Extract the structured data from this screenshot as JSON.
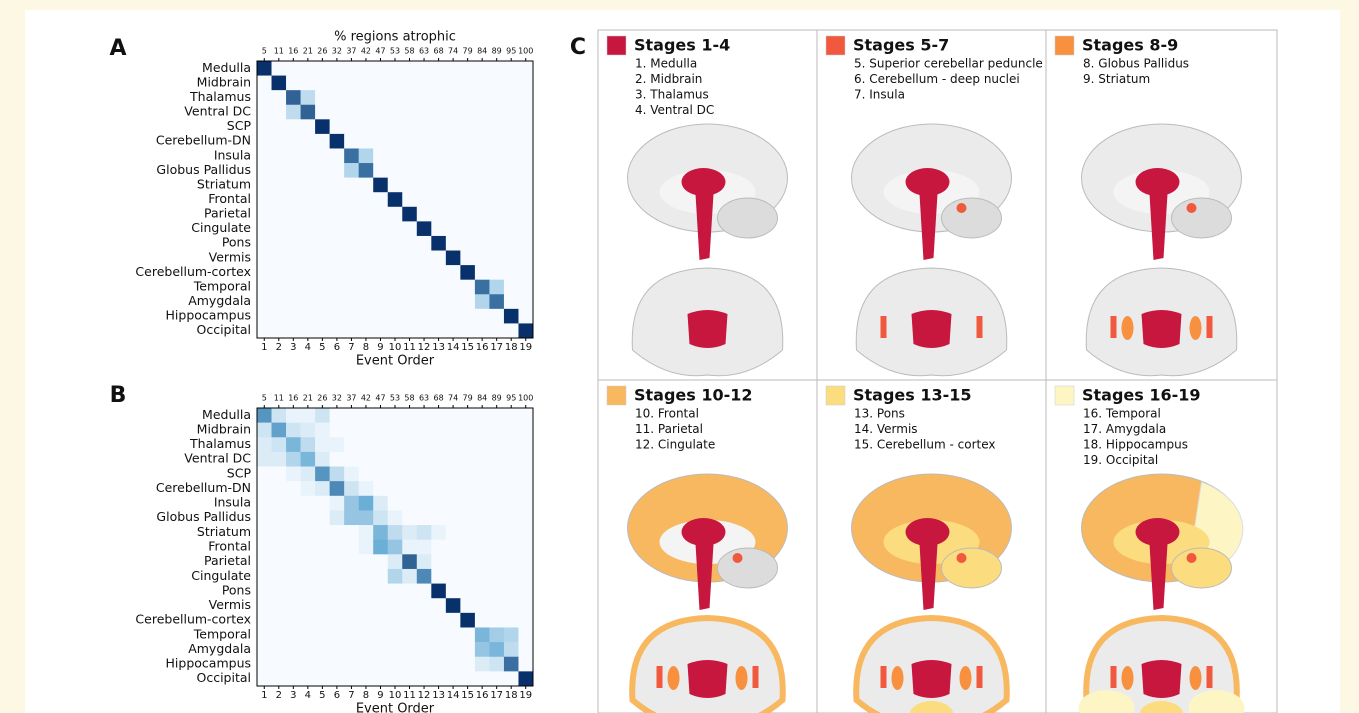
{
  "chart_data": [
    {
      "type": "heatmap",
      "label": "A",
      "x2label": "% regions atrophic",
      "xlabel": "Event Order",
      "rows": [
        "Medulla",
        "Midbrain",
        "Thalamus",
        "Ventral DC",
        "SCP",
        "Cerebellum-DN",
        "Insula",
        "Globus Pallidus",
        "Striatum",
        "Frontal",
        "Parietal",
        "Cingulate",
        "Pons",
        "Vermis",
        "Cerebellum-cortex",
        "Temporal",
        "Amygdala",
        "Hippocampus",
        "Occipital"
      ],
      "columns": [
        1,
        2,
        3,
        4,
        5,
        6,
        7,
        8,
        9,
        10,
        11,
        12,
        13,
        14,
        15,
        16,
        17,
        18,
        19
      ],
      "columns_top": [
        5,
        11,
        16,
        21,
        26,
        32,
        37,
        42,
        47,
        53,
        58,
        63,
        68,
        74,
        79,
        84,
        89,
        95,
        100
      ],
      "vlim": [
        0,
        1
      ],
      "colorscale": [
        "#f7fbff",
        "#6baed6",
        "#08306b"
      ],
      "values": [
        [
          1,
          0,
          0,
          0,
          0,
          0,
          0,
          0,
          0,
          0,
          0,
          0,
          0,
          0,
          0,
          0,
          0,
          0,
          0
        ],
        [
          0,
          1,
          0,
          0,
          0,
          0,
          0,
          0,
          0,
          0,
          0,
          0,
          0,
          0,
          0,
          0,
          0,
          0,
          0
        ],
        [
          0,
          0,
          0.8,
          0.2,
          0,
          0,
          0,
          0,
          0,
          0,
          0,
          0,
          0,
          0,
          0,
          0,
          0,
          0,
          0
        ],
        [
          0,
          0,
          0.2,
          0.8,
          0,
          0,
          0,
          0,
          0,
          0,
          0,
          0,
          0,
          0,
          0,
          0,
          0,
          0,
          0
        ],
        [
          0,
          0,
          0,
          0,
          1,
          0,
          0,
          0,
          0,
          0,
          0,
          0,
          0,
          0,
          0,
          0,
          0,
          0,
          0
        ],
        [
          0,
          0,
          0,
          0,
          0,
          1,
          0,
          0,
          0,
          0,
          0,
          0,
          0,
          0,
          0,
          0,
          0,
          0,
          0
        ],
        [
          0,
          0,
          0,
          0,
          0,
          0,
          0.75,
          0.25,
          0,
          0,
          0,
          0,
          0,
          0,
          0,
          0,
          0,
          0,
          0
        ],
        [
          0,
          0,
          0,
          0,
          0,
          0,
          0.25,
          0.75,
          0,
          0,
          0,
          0,
          0,
          0,
          0,
          0,
          0,
          0,
          0
        ],
        [
          0,
          0,
          0,
          0,
          0,
          0,
          0,
          0,
          1,
          0,
          0,
          0,
          0,
          0,
          0,
          0,
          0,
          0,
          0
        ],
        [
          0,
          0,
          0,
          0,
          0,
          0,
          0,
          0,
          0,
          1,
          0,
          0,
          0,
          0,
          0,
          0,
          0,
          0,
          0
        ],
        [
          0,
          0,
          0,
          0,
          0,
          0,
          0,
          0,
          0,
          0,
          1,
          0,
          0,
          0,
          0,
          0,
          0,
          0,
          0
        ],
        [
          0,
          0,
          0,
          0,
          0,
          0,
          0,
          0,
          0,
          0,
          0,
          1,
          0,
          0,
          0,
          0,
          0,
          0,
          0
        ],
        [
          0,
          0,
          0,
          0,
          0,
          0,
          0,
          0,
          0,
          0,
          0,
          0,
          1,
          0,
          0,
          0,
          0,
          0,
          0
        ],
        [
          0,
          0,
          0,
          0,
          0,
          0,
          0,
          0,
          0,
          0,
          0,
          0,
          0,
          1,
          0,
          0,
          0,
          0,
          0
        ],
        [
          0,
          0,
          0,
          0,
          0,
          0,
          0,
          0,
          0,
          0,
          0,
          0,
          0,
          0,
          1,
          0,
          0,
          0,
          0
        ],
        [
          0,
          0,
          0,
          0,
          0,
          0,
          0,
          0,
          0,
          0,
          0,
          0,
          0,
          0,
          0,
          0.75,
          0.25,
          0,
          0
        ],
        [
          0,
          0,
          0,
          0,
          0,
          0,
          0,
          0,
          0,
          0,
          0,
          0,
          0,
          0,
          0,
          0.25,
          0.75,
          0,
          0
        ],
        [
          0,
          0,
          0,
          0,
          0,
          0,
          0,
          0,
          0,
          0,
          0,
          0,
          0,
          0,
          0,
          0,
          0,
          1,
          0
        ],
        [
          0,
          0,
          0,
          0,
          0,
          0,
          0,
          0,
          0,
          0,
          0,
          0,
          0,
          0,
          0,
          0,
          0,
          0,
          1
        ]
      ]
    },
    {
      "type": "heatmap",
      "label": "B",
      "xlabel": "Event Order",
      "rows": [
        "Medulla",
        "Midbrain",
        "Thalamus",
        "Ventral DC",
        "SCP",
        "Cerebellum-DN",
        "Insula",
        "Globus Pallidus",
        "Striatum",
        "Frontal",
        "Parietal",
        "Cingulate",
        "Pons",
        "Vermis",
        "Cerebellum-cortex",
        "Temporal",
        "Amygdala",
        "Hippocampus",
        "Occipital"
      ],
      "columns": [
        1,
        2,
        3,
        4,
        5,
        6,
        7,
        8,
        9,
        10,
        11,
        12,
        13,
        14,
        15,
        16,
        17,
        18,
        19
      ],
      "columns_top": [
        5,
        11,
        16,
        21,
        26,
        32,
        37,
        42,
        47,
        53,
        58,
        63,
        68,
        74,
        79,
        84,
        89,
        95,
        100
      ],
      "vlim": [
        0,
        1
      ],
      "colorscale": [
        "#f7fbff",
        "#6baed6",
        "#08306b"
      ],
      "values": [
        [
          0.6,
          0.15,
          0.05,
          0.05,
          0.15,
          0,
          0,
          0,
          0,
          0,
          0,
          0,
          0,
          0,
          0,
          0,
          0,
          0,
          0
        ],
        [
          0.15,
          0.55,
          0.15,
          0.1,
          0.05,
          0,
          0,
          0,
          0,
          0,
          0,
          0,
          0,
          0,
          0,
          0,
          0,
          0,
          0
        ],
        [
          0.1,
          0.15,
          0.45,
          0.2,
          0.05,
          0.05,
          0,
          0,
          0,
          0,
          0,
          0,
          0,
          0,
          0,
          0,
          0,
          0,
          0
        ],
        [
          0.1,
          0.1,
          0.25,
          0.45,
          0.1,
          0,
          0,
          0,
          0,
          0,
          0,
          0,
          0,
          0,
          0,
          0,
          0,
          0,
          0
        ],
        [
          0,
          0,
          0.05,
          0.1,
          0.6,
          0.2,
          0.05,
          0,
          0,
          0,
          0,
          0,
          0,
          0,
          0,
          0,
          0,
          0,
          0
        ],
        [
          0,
          0,
          0,
          0.05,
          0.1,
          0.65,
          0.15,
          0.05,
          0,
          0,
          0,
          0,
          0,
          0,
          0,
          0,
          0,
          0,
          0
        ],
        [
          0,
          0,
          0,
          0,
          0,
          0.05,
          0.35,
          0.5,
          0.1,
          0,
          0,
          0,
          0,
          0,
          0,
          0,
          0,
          0,
          0
        ],
        [
          0,
          0,
          0,
          0,
          0,
          0.1,
          0.35,
          0.35,
          0.15,
          0.05,
          0,
          0,
          0,
          0,
          0,
          0,
          0,
          0,
          0
        ],
        [
          0,
          0,
          0,
          0,
          0,
          0,
          0,
          0.05,
          0.45,
          0.2,
          0.1,
          0.15,
          0.05,
          0,
          0,
          0,
          0,
          0,
          0
        ],
        [
          0,
          0,
          0,
          0,
          0,
          0,
          0,
          0.05,
          0.5,
          0.35,
          0.05,
          0.05,
          0,
          0,
          0,
          0,
          0,
          0,
          0
        ],
        [
          0,
          0,
          0,
          0,
          0,
          0,
          0,
          0,
          0,
          0.1,
          0.8,
          0.1,
          0,
          0,
          0,
          0,
          0,
          0,
          0
        ],
        [
          0,
          0,
          0,
          0,
          0,
          0,
          0,
          0,
          0,
          0.25,
          0.1,
          0.65,
          0,
          0,
          0,
          0,
          0,
          0,
          0
        ],
        [
          0,
          0,
          0,
          0,
          0,
          0,
          0,
          0,
          0,
          0,
          0,
          0,
          1,
          0,
          0,
          0,
          0,
          0,
          0
        ],
        [
          0,
          0,
          0,
          0,
          0,
          0,
          0,
          0,
          0,
          0,
          0,
          0,
          0,
          1,
          0,
          0,
          0,
          0,
          0
        ],
        [
          0,
          0,
          0,
          0,
          0,
          0,
          0,
          0,
          0,
          0,
          0,
          0,
          0,
          0,
          1,
          0,
          0,
          0,
          0
        ],
        [
          0,
          0,
          0,
          0,
          0,
          0,
          0,
          0,
          0,
          0,
          0,
          0,
          0,
          0,
          0,
          0.45,
          0.3,
          0.25,
          0
        ],
        [
          0,
          0,
          0,
          0,
          0,
          0,
          0,
          0,
          0,
          0,
          0,
          0,
          0,
          0,
          0,
          0.35,
          0.45,
          0.2,
          0
        ],
        [
          0,
          0,
          0,
          0,
          0,
          0,
          0,
          0,
          0,
          0,
          0,
          0,
          0,
          0,
          0,
          0.1,
          0.15,
          0.75,
          0
        ],
        [
          0,
          0,
          0,
          0,
          0,
          0,
          0,
          0,
          0,
          0,
          0,
          0,
          0,
          0,
          0,
          0,
          0,
          0,
          1
        ]
      ]
    }
  ],
  "panel_c": {
    "label": "C",
    "stages": [
      {
        "title": "Stages 1-4",
        "color": "#c8173f",
        "items": [
          "1. Medulla",
          "2. Midbrain",
          "3. Thalamus",
          "4. Ventral DC"
        ]
      },
      {
        "title": "Stages 5-7",
        "color": "#f0593d",
        "items": [
          "5. Superior cerebellar peduncle",
          "6. Cerebellum - deep nuclei",
          "7. Insula"
        ]
      },
      {
        "title": "Stages 8-9",
        "color": "#f7913f",
        "items": [
          "8. Globus Pallidus",
          "9. Striatum"
        ]
      },
      {
        "title": "Stages 10-12",
        "color": "#f7b860",
        "items": [
          "10. Frontal",
          "11. Parietal",
          "12. Cingulate"
        ]
      },
      {
        "title": "Stages 13-15",
        "color": "#fbdc7f",
        "items": [
          "13. Pons",
          "14. Vermis",
          "15. Cerebellum - cortex"
        ]
      },
      {
        "title": "Stages 16-19",
        "color": "#fdf6c4",
        "items": [
          "16. Temporal",
          "17. Amygdala",
          "18. Hippocampus",
          "19. Occipital"
        ]
      }
    ]
  }
}
